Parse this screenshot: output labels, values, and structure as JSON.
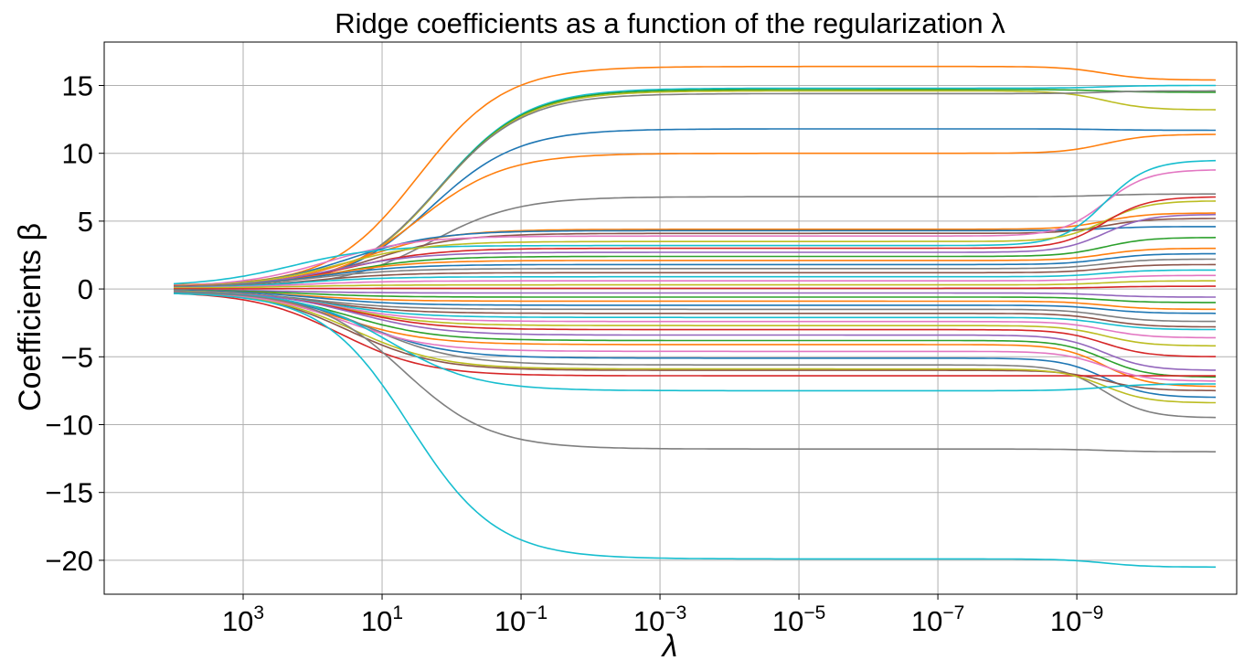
{
  "chart_data": {
    "type": "line",
    "title": "Ridge coefficients as a function of the regularization λ",
    "xlabel": "λ",
    "ylabel": "Coefficients β",
    "x_scale": "log",
    "x_inverted": true,
    "xlim": [
      100000,
      5e-12
    ],
    "ylim": [
      -22.5,
      18.2
    ],
    "grid": true,
    "x_ticks": [
      {
        "value": 1000,
        "base": "10",
        "exp": "3"
      },
      {
        "value": 10,
        "base": "10",
        "exp": "1"
      },
      {
        "value": 0.1,
        "base": "10",
        "exp": "−1"
      },
      {
        "value": 0.001,
        "base": "10",
        "exp": "−3"
      },
      {
        "value": 1e-05,
        "base": "10",
        "exp": "−5"
      },
      {
        "value": 1e-07,
        "base": "10",
        "exp": "−7"
      },
      {
        "value": 1e-09,
        "base": "10",
        "exp": "−9"
      }
    ],
    "y_ticks": [
      {
        "value": 15,
        "label": "15"
      },
      {
        "value": 10,
        "label": "10"
      },
      {
        "value": 5,
        "label": "5"
      },
      {
        "value": 0,
        "label": "0"
      },
      {
        "value": -5,
        "label": "−5"
      },
      {
        "value": -10,
        "label": "−10"
      },
      {
        "value": -15,
        "label": "−15"
      },
      {
        "value": -20,
        "label": "−20"
      }
    ],
    "lambda_range": [
      10000,
      1e-11
    ],
    "series": [
      {
        "color": "#ff7f0e",
        "start": 0.25,
        "plateau": 16.4,
        "end": 15.4,
        "mid_lambda": 3
      },
      {
        "color": "#17becf",
        "start": 0.2,
        "plateau": 14.8,
        "end": 15.0,
        "mid_lambda": 1.5
      },
      {
        "color": "#2ca02c",
        "start": 0.2,
        "plateau": 14.7,
        "end": 14.5,
        "mid_lambda": 1.5
      },
      {
        "color": "#bcbd22",
        "start": 0.2,
        "plateau": 14.6,
        "end": 13.2,
        "mid_lambda": 1.5
      },
      {
        "color": "#7f7f7f",
        "start": 0.2,
        "plateau": 14.4,
        "end": 14.6,
        "mid_lambda": 1.6
      },
      {
        "color": "#1f77b4",
        "start": 0.2,
        "plateau": 11.8,
        "end": 11.7,
        "mid_lambda": 2
      },
      {
        "color": "#ff7f0e",
        "start": 0.2,
        "plateau": 10.0,
        "end": 11.4,
        "mid_lambda": 3
      },
      {
        "color": "#7f7f7f",
        "start": 0.15,
        "plateau": 6.8,
        "end": 7.0,
        "mid_lambda": 2
      },
      {
        "color": "#ff7f0e",
        "start": 0.15,
        "plateau": 4.4,
        "end": 5.6,
        "mid_lambda": 20
      },
      {
        "color": "#1f77b4",
        "start": 0.15,
        "plateau": 4.3,
        "end": 4.6,
        "mid_lambda": 30
      },
      {
        "color": "#8c564b",
        "start": 0.15,
        "plateau": 4.1,
        "end": 5.2,
        "mid_lambda": 15
      },
      {
        "color": "#e377c2",
        "start": 0.15,
        "plateau": 3.9,
        "end": 8.8,
        "mid_lambda": 60
      },
      {
        "color": "#17becf",
        "start": 0.2,
        "plateau": 3.2,
        "end": 9.5,
        "mid_lambda": 200
      },
      {
        "color": "#bcbd22",
        "start": 0.15,
        "plateau": 3.5,
        "end": 6.5,
        "mid_lambda": 40
      },
      {
        "color": "#d62728",
        "start": 0.15,
        "plateau": 3.0,
        "end": 6.8,
        "mid_lambda": 30
      },
      {
        "color": "#9467bd",
        "start": 0.1,
        "plateau": 2.7,
        "end": 5.5,
        "mid_lambda": 50
      },
      {
        "color": "#2ca02c",
        "start": 0.1,
        "plateau": 2.4,
        "end": 3.8,
        "mid_lambda": 40
      },
      {
        "color": "#ff7f0e",
        "start": 0.1,
        "plateau": 2.1,
        "end": 3.0,
        "mid_lambda": 60
      },
      {
        "color": "#1f77b4",
        "start": 0.1,
        "plateau": 1.8,
        "end": 2.6,
        "mid_lambda": 80
      },
      {
        "color": "#7f7f7f",
        "start": 0.1,
        "plateau": 1.5,
        "end": 2.2,
        "mid_lambda": 100
      },
      {
        "color": "#8c564b",
        "start": 0.05,
        "plateau": 1.2,
        "end": 1.8,
        "mid_lambda": 100
      },
      {
        "color": "#17becf",
        "start": 0.05,
        "plateau": 0.9,
        "end": 1.4,
        "mid_lambda": 150
      },
      {
        "color": "#e377c2",
        "start": 0.05,
        "plateau": 0.6,
        "end": 1.0,
        "mid_lambda": 150
      },
      {
        "color": "#bcbd22",
        "start": 0.05,
        "plateau": 0.3,
        "end": 0.6,
        "mid_lambda": 200
      },
      {
        "color": "#d62728",
        "start": 0.0,
        "plateau": 0.05,
        "end": 0.2,
        "mid_lambda": 200
      },
      {
        "color": "#9467bd",
        "start": -0.05,
        "plateau": -0.3,
        "end": -0.6,
        "mid_lambda": 200
      },
      {
        "color": "#2ca02c",
        "start": -0.05,
        "plateau": -0.6,
        "end": -1.0,
        "mid_lambda": 150
      },
      {
        "color": "#ff7f0e",
        "start": -0.05,
        "plateau": -0.9,
        "end": -1.5,
        "mid_lambda": 150
      },
      {
        "color": "#1f77b4",
        "start": -0.05,
        "plateau": -1.2,
        "end": -1.8,
        "mid_lambda": 100
      },
      {
        "color": "#7f7f7f",
        "start": -0.1,
        "plateau": -1.5,
        "end": -2.4,
        "mid_lambda": 100
      },
      {
        "color": "#8c564b",
        "start": -0.1,
        "plateau": -1.8,
        "end": -2.8,
        "mid_lambda": 80
      },
      {
        "color": "#17becf",
        "start": -0.1,
        "plateau": -2.1,
        "end": -3.0,
        "mid_lambda": 60
      },
      {
        "color": "#e377c2",
        "start": -0.1,
        "plateau": -2.4,
        "end": -3.6,
        "mid_lambda": 50
      },
      {
        "color": "#bcbd22",
        "start": -0.1,
        "plateau": -2.7,
        "end": -4.2,
        "mid_lambda": 40
      },
      {
        "color": "#d62728",
        "start": -0.15,
        "plateau": -3.0,
        "end": -5.0,
        "mid_lambda": 30
      },
      {
        "color": "#9467bd",
        "start": -0.15,
        "plateau": -3.4,
        "end": -6.0,
        "mid_lambda": 25
      },
      {
        "color": "#2ca02c",
        "start": -0.15,
        "plateau": -3.8,
        "end": -6.5,
        "mid_lambda": 30
      },
      {
        "color": "#ff7f0e",
        "start": -0.15,
        "plateau": -4.1,
        "end": -7.2,
        "mid_lambda": 40
      },
      {
        "color": "#1f77b4",
        "start": -0.15,
        "plateau": -5.1,
        "end": -8.0,
        "mid_lambda": 20
      },
      {
        "color": "#7f7f7f",
        "start": -0.15,
        "plateau": -5.6,
        "end": -9.5,
        "mid_lambda": 15
      },
      {
        "color": "#8c564b",
        "start": -0.15,
        "plateau": -6.0,
        "end": -7.5,
        "mid_lambda": 30
      },
      {
        "color": "#d62728",
        "start": -0.2,
        "plateau": -6.4,
        "end": -6.4,
        "mid_lambda": 40
      },
      {
        "color": "#bcbd22",
        "start": -0.2,
        "plateau": -5.9,
        "end": -8.4,
        "mid_lambda": 25
      },
      {
        "color": "#e377c2",
        "start": -0.15,
        "plateau": -4.6,
        "end": -6.8,
        "mid_lambda": 35
      },
      {
        "color": "#17becf",
        "start": -0.2,
        "plateau": -7.5,
        "end": -7.0,
        "mid_lambda": 8
      },
      {
        "color": "#7f7f7f",
        "start": -0.2,
        "plateau": -11.8,
        "end": -12.0,
        "mid_lambda": 5
      },
      {
        "color": "#17becf",
        "start": -0.25,
        "plateau": -19.9,
        "end": -20.5,
        "mid_lambda": 4
      }
    ]
  }
}
